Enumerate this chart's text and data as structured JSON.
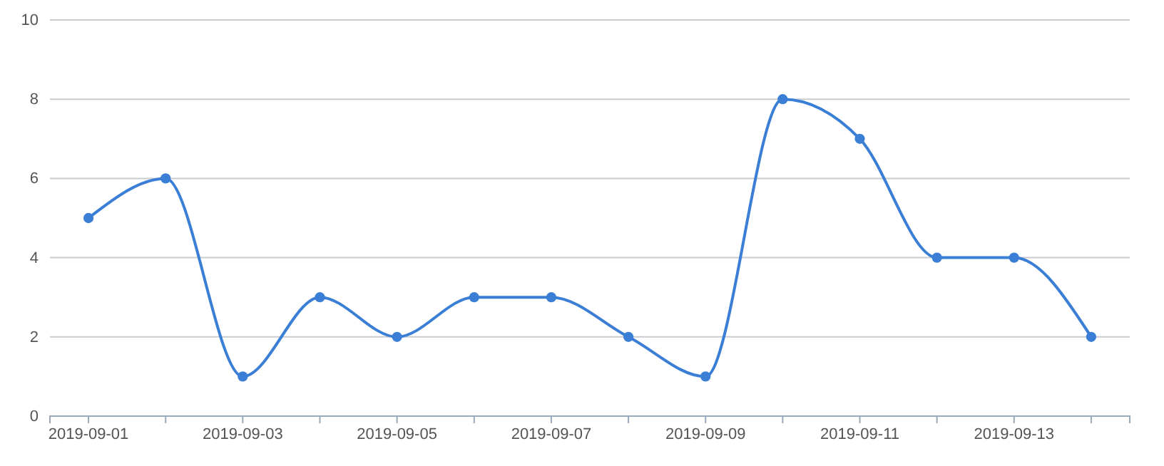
{
  "chart_data": {
    "type": "line",
    "categories": [
      "2019-09-01",
      null,
      "2019-09-03",
      null,
      "2019-09-05",
      null,
      "2019-09-07",
      null,
      "2019-09-09",
      null,
      "2019-09-11",
      null,
      "2019-09-13",
      null
    ],
    "series": [
      {
        "color": "#3a7fd5",
        "values": [
          5,
          6,
          1,
          3,
          2,
          3,
          3,
          2,
          1,
          8,
          7,
          4,
          4,
          2
        ]
      }
    ],
    "ylim": [
      0,
      10
    ],
    "yticks": [
      0,
      2,
      4,
      6,
      8,
      10
    ],
    "grid": "y",
    "marker": "circle",
    "line_style": "solid"
  }
}
